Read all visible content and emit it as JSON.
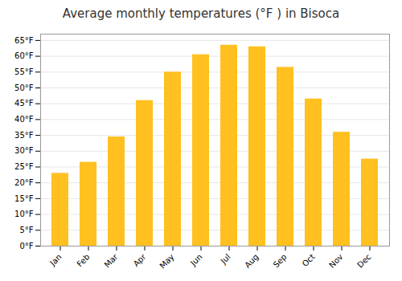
{
  "chart_data": {
    "type": "bar",
    "title": "Average monthly temperatures (°F ) in Bisoca",
    "categories": [
      "Jan",
      "Feb",
      "Mar",
      "Apr",
      "May",
      "Jun",
      "Jul",
      "Aug",
      "Sep",
      "Oct",
      "Nov",
      "Dec"
    ],
    "values": [
      23,
      26.5,
      34.5,
      46,
      55,
      60.5,
      63.5,
      63,
      56.5,
      46.5,
      36,
      27.5
    ],
    "color": "#FFC020",
    "ylim": [
      0,
      67
    ],
    "yticks": [
      {
        "value": 0,
        "label": "0°F"
      },
      {
        "value": 5,
        "label": "5°F"
      },
      {
        "value": 10,
        "label": "10°F"
      },
      {
        "value": 15,
        "label": "15°F"
      },
      {
        "value": 20,
        "label": "20°F"
      },
      {
        "value": 25,
        "label": "25°F"
      },
      {
        "value": 30,
        "label": "30°F"
      },
      {
        "value": 35,
        "label": "35°F"
      },
      {
        "value": 40,
        "label": "40°F"
      },
      {
        "value": 45,
        "label": "45°F"
      },
      {
        "value": 50,
        "label": "50°F"
      },
      {
        "value": 55,
        "label": "55°F"
      },
      {
        "value": 60,
        "label": "60°F"
      },
      {
        "value": 65,
        "label": "65°F"
      }
    ],
    "grid": true
  }
}
